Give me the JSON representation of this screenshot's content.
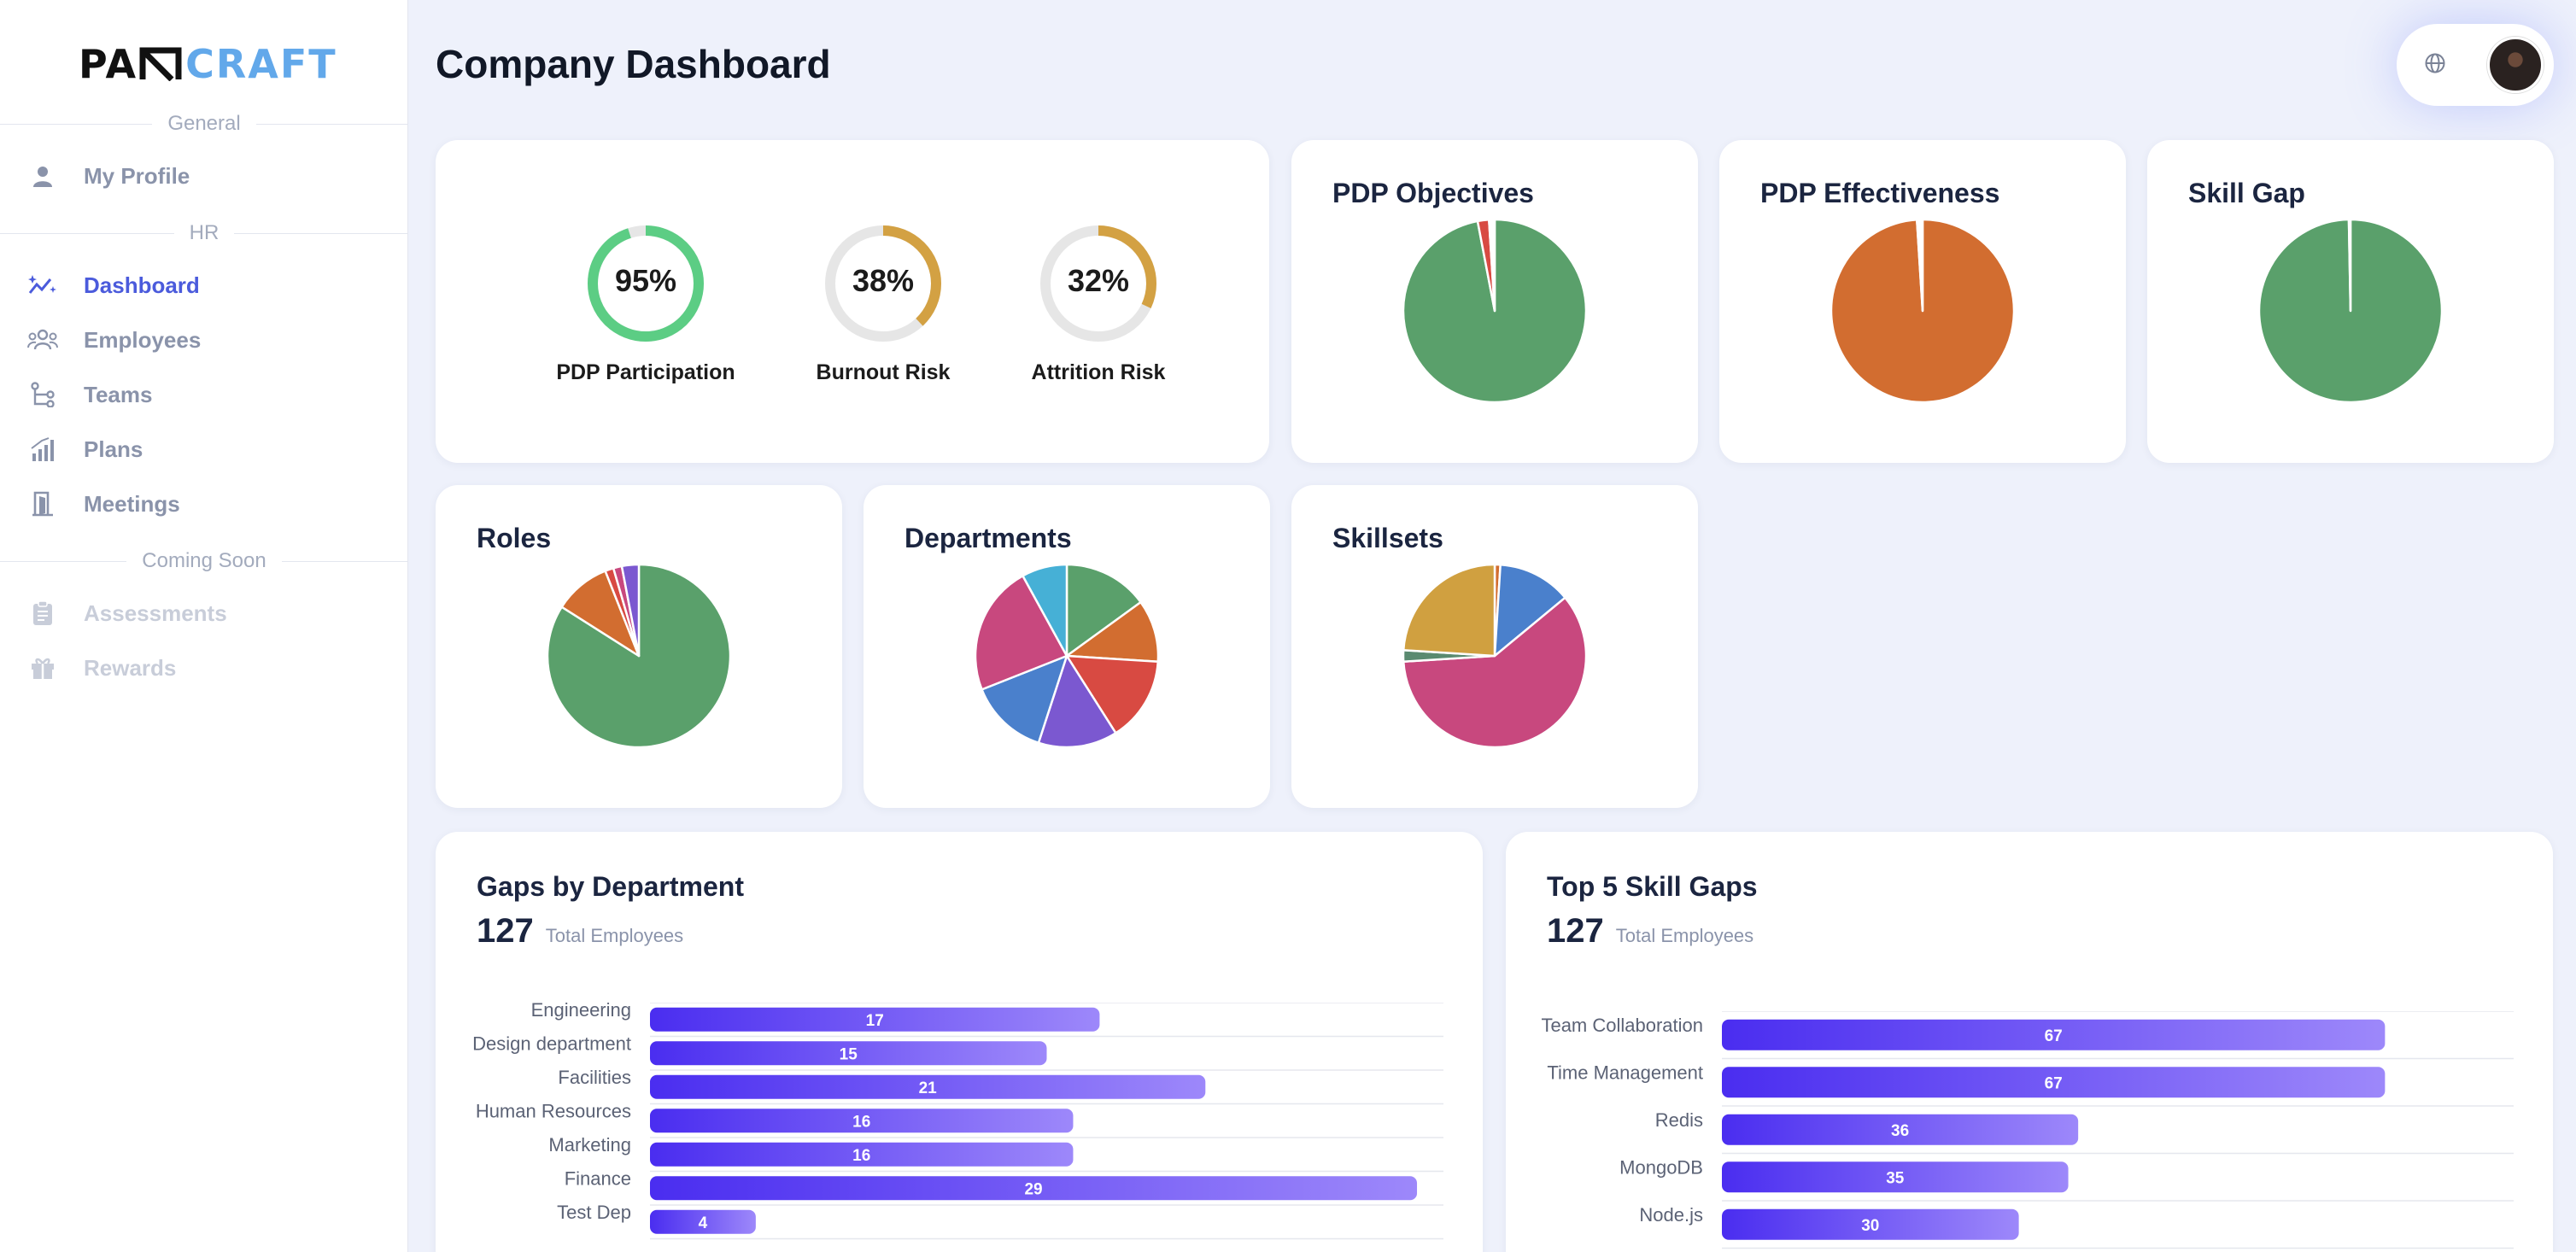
{
  "brand": {
    "logo_dark": "PAᴎ",
    "logo_dark_display": "PA",
    "logo_blue": "CRAFT"
  },
  "sidebar": {
    "sections": {
      "general": "General",
      "hr": "HR",
      "coming_soon": "Coming Soon"
    },
    "items": [
      {
        "label": "My Profile",
        "icon": "user-icon"
      },
      {
        "label": "Dashboard",
        "icon": "sparkle-chart-icon",
        "active": true
      },
      {
        "label": "Employees",
        "icon": "users-icon"
      },
      {
        "label": "Teams",
        "icon": "hierarchy-icon"
      },
      {
        "label": "Plans",
        "icon": "bar-trend-icon"
      },
      {
        "label": "Meetings",
        "icon": "door-icon"
      },
      {
        "label": "Assessments",
        "icon": "clipboard-icon",
        "disabled": true
      },
      {
        "label": "Rewards",
        "icon": "gift-icon",
        "disabled": true
      }
    ]
  },
  "header": {
    "title": "Company Dashboard",
    "language_icon": "globe-icon"
  },
  "colors": {
    "accent": "#4b5bdc",
    "green": "#5aa06b",
    "orange": "#d26d30",
    "gold": "#d0a040",
    "red": "#d84a42",
    "pink": "#c8487e",
    "blue": "#4a80cc",
    "purple": "#7b58d0",
    "cyan": "#46b0d6",
    "gauge_green": "#5ccd84",
    "gauge_track": "#e6e6e6"
  },
  "kpis": [
    {
      "value": 95,
      "text": "95%",
      "label": "PDP Participation",
      "color": "#5ccd84"
    },
    {
      "value": 38,
      "text": "38%",
      "label": "Burnout Risk",
      "color": "#d3a143"
    },
    {
      "value": 32,
      "text": "32%",
      "label": "Attrition Risk",
      "color": "#d3a143"
    }
  ],
  "pies": {
    "pdp_objectives": {
      "title": "PDP Objectives",
      "slices": [
        {
          "value": 97,
          "color": "#5aa06b"
        },
        {
          "value": 2,
          "color": "#d84a42"
        },
        {
          "value": 1,
          "color": "#ffffff"
        }
      ]
    },
    "pdp_effectiveness": {
      "title": "PDP Effectiveness",
      "slices": [
        {
          "value": 99,
          "color": "#d26d30"
        },
        {
          "value": 1,
          "color": "#ffffff"
        }
      ]
    },
    "skill_gap": {
      "title": "Skill Gap",
      "slices": [
        {
          "value": 99.7,
          "color": "#5aa06b"
        },
        {
          "value": 0.3,
          "color": "#ffffff"
        }
      ]
    },
    "roles": {
      "title": "Roles",
      "slices": [
        {
          "value": 84,
          "color": "#5aa06b"
        },
        {
          "value": 10,
          "color": "#d26d30"
        },
        {
          "value": 1.5,
          "color": "#d84a42"
        },
        {
          "value": 1.5,
          "color": "#c8487e"
        },
        {
          "value": 3,
          "color": "#7b58d0"
        }
      ]
    },
    "departments": {
      "title": "Departments",
      "slices": [
        {
          "value": 15,
          "color": "#5aa06b"
        },
        {
          "value": 11,
          "color": "#d26d30"
        },
        {
          "value": 15,
          "color": "#d84a42"
        },
        {
          "value": 14,
          "color": "#7b58d0"
        },
        {
          "value": 14,
          "color": "#4a80cc"
        },
        {
          "value": 23,
          "color": "#c8487e"
        },
        {
          "value": 8,
          "color": "#46b0d6"
        }
      ]
    },
    "skillsets": {
      "title": "Skillsets",
      "slices": [
        {
          "value": 1,
          "color": "#d26d30"
        },
        {
          "value": 13,
          "color": "#4a80cc"
        },
        {
          "value": 60,
          "color": "#c8487e"
        },
        {
          "value": 2,
          "color": "#5a8a70"
        },
        {
          "value": 24,
          "color": "#d0a040"
        }
      ]
    }
  },
  "gaps_by_department": {
    "title": "Gaps by Department",
    "total": "127",
    "total_label": "Total Employees",
    "chart_data": {
      "type": "bar",
      "orientation": "horizontal",
      "categories": [
        "Engineering",
        "Design department",
        "Facilities",
        "Human Resources",
        "Marketing",
        "Finance",
        "Test Dep"
      ],
      "values": [
        17,
        15,
        21,
        16,
        16,
        29,
        4
      ],
      "xlim": [
        0,
        30
      ]
    }
  },
  "top_skill_gaps": {
    "title": "Top 5 Skill Gaps",
    "total": "127",
    "total_label": "Total Employees",
    "chart_data": {
      "type": "bar",
      "orientation": "horizontal",
      "categories": [
        "Team Collaboration",
        "Time Management",
        "Redis",
        "MongoDB",
        "Node.js"
      ],
      "values": [
        67,
        67,
        36,
        35,
        30
      ],
      "xlim": [
        0,
        80
      ]
    }
  }
}
